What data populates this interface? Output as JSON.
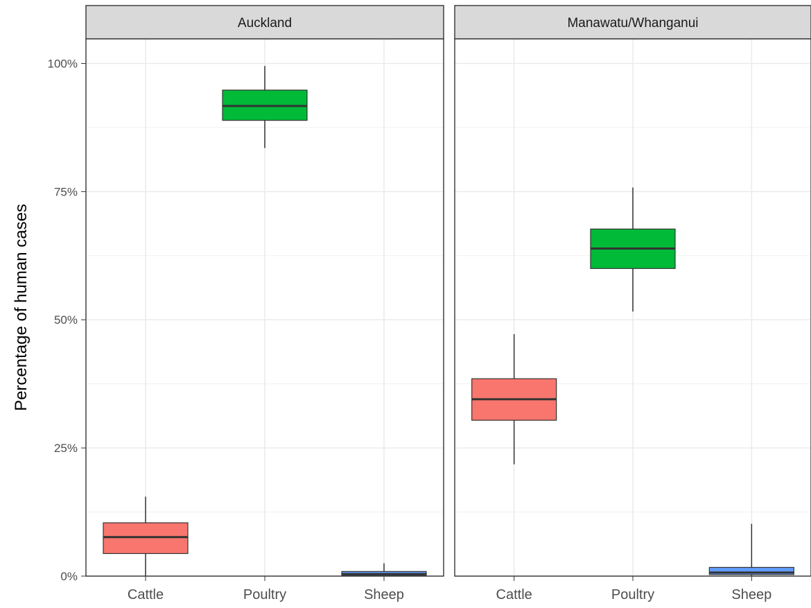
{
  "chart_data": {
    "type": "boxplot",
    "ylabel": "Percentage of human cases",
    "xlabel": "",
    "ylim": [
      0,
      100
    ],
    "y_ticks": [
      {
        "value": 0,
        "label": "0%"
      },
      {
        "value": 25,
        "label": "25%"
      },
      {
        "value": 50,
        "label": "50%"
      },
      {
        "value": 75,
        "label": "75%"
      },
      {
        "value": 100,
        "label": "100%"
      }
    ],
    "categories": [
      "Cattle",
      "Poultry",
      "Sheep"
    ],
    "category_colors": {
      "Cattle": "#F8766D",
      "Poultry": "#00BA38",
      "Sheep": "#619CFF"
    },
    "grid": true,
    "legend": "none",
    "panels": [
      {
        "title": "Auckland",
        "boxes": [
          {
            "category": "Cattle",
            "min": 0.0,
            "q1": 4.4,
            "median": 7.6,
            "q3": 10.4,
            "max": 15.5
          },
          {
            "category": "Poultry",
            "min": 83.5,
            "q1": 88.9,
            "median": 91.7,
            "q3": 94.8,
            "max": 99.5
          },
          {
            "category": "Sheep",
            "min": 0.0,
            "q1": 0.1,
            "median": 0.4,
            "q3": 0.9,
            "max": 2.5
          }
        ]
      },
      {
        "title": "Manawatu/Whanganui",
        "boxes": [
          {
            "category": "Cattle",
            "min": 21.8,
            "q1": 30.4,
            "median": 34.5,
            "q3": 38.5,
            "max": 47.2
          },
          {
            "category": "Poultry",
            "min": 51.6,
            "q1": 60.0,
            "median": 63.9,
            "q3": 67.7,
            "max": 75.8
          },
          {
            "category": "Sheep",
            "min": 0.0,
            "q1": 0.3,
            "median": 0.7,
            "q3": 1.7,
            "max": 10.2
          }
        ]
      }
    ]
  }
}
